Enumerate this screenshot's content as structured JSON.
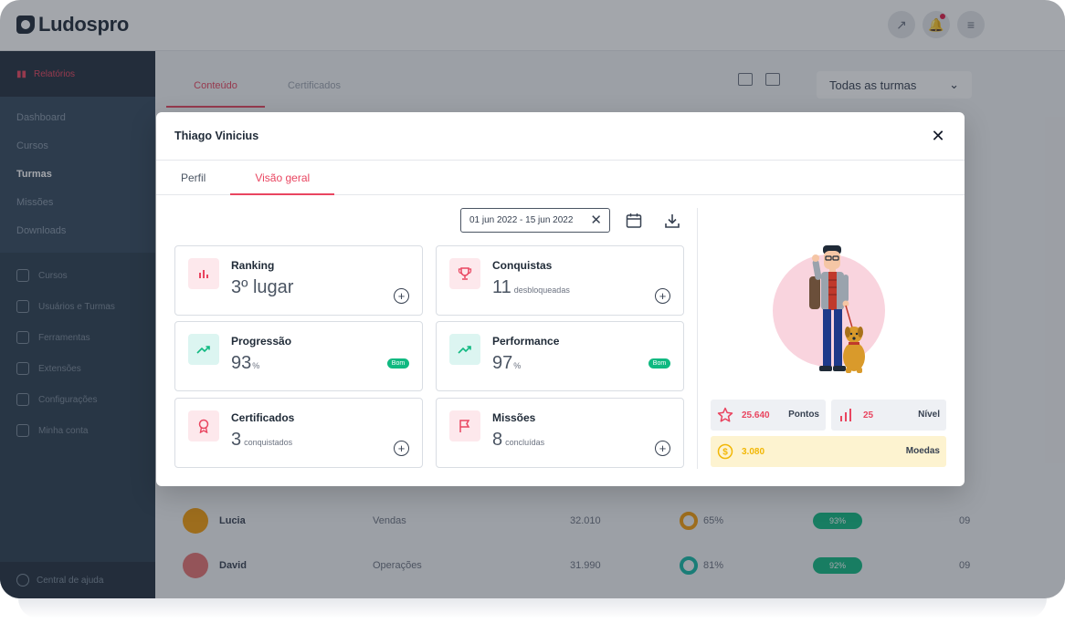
{
  "brand": {
    "name": "Ludospro"
  },
  "sidebar": {
    "active": "Relatórios",
    "sub_items": [
      "Dashboard",
      "Cursos",
      "Turmas",
      "Missões",
      "Downloads"
    ],
    "items": [
      "Cursos",
      "Usuários e Turmas",
      "Ferramentas",
      "Extensões",
      "Configurações",
      "Minha conta"
    ],
    "help": "Central de ajuda"
  },
  "page": {
    "tabs": [
      "Conteúdo",
      "Certificados"
    ],
    "select": "Todas as turmas",
    "rows": [
      {
        "name": "Lucia",
        "dept": "Vendas",
        "points": "32.010",
        "pct": "65%",
        "badge": "93%",
        "extra": "09"
      },
      {
        "name": "David",
        "dept": "Operações",
        "points": "31.990",
        "pct": "81%",
        "badge": "92%",
        "extra": "09"
      }
    ]
  },
  "modal": {
    "title": "Thiago Vinicius",
    "tabs": [
      "Perfil",
      "Visão geral"
    ],
    "date_range": "01 jun 2022 - 15 jun 2022",
    "cards": {
      "ranking": {
        "title": "Ranking",
        "value": "3º lugar"
      },
      "conquistas": {
        "title": "Conquistas",
        "value": "11",
        "suffix": "desbloqueadas"
      },
      "progressao": {
        "title": "Progressão",
        "value": "93",
        "suffix": "%",
        "badge": "Bom"
      },
      "performance": {
        "title": "Performance",
        "value": "97",
        "suffix": "%",
        "badge": "Bom"
      },
      "certificados": {
        "title": "Certificados",
        "value": "3",
        "suffix": "conquistados"
      },
      "missoes": {
        "title": "Missões",
        "value": "8",
        "suffix": "concluídas"
      }
    },
    "stats": {
      "points": {
        "value": "25.640",
        "label": "Pontos"
      },
      "level": {
        "value": "25",
        "label": "Nível"
      },
      "coins": {
        "value": "3.080",
        "label": "Moedas"
      }
    }
  },
  "colors": {
    "accent": "#e94560",
    "teal": "#10b981",
    "sidebar": "#2c3e50",
    "coins": "#f2b705"
  }
}
